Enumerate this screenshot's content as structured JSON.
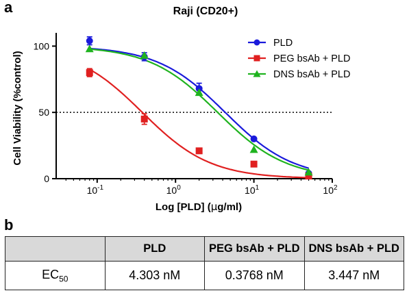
{
  "panel_a_label": "a",
  "panel_b_label": "b",
  "chart_data": {
    "type": "scatter",
    "title": "Raji (CD20+)",
    "xlabel_pre": "Log [PLD] (",
    "xlabel_mu": "μ",
    "xlabel_post": "g/ml)",
    "ylabel": "Cell Viability (%control)",
    "x_scale": "log",
    "xlim": [
      0.03,
      100
    ],
    "ylim": [
      0,
      110
    ],
    "x_ticks": [
      {
        "base": "10",
        "exp": "-1",
        "value": 0.1
      },
      {
        "base": "10",
        "exp": "0",
        "value": 1
      },
      {
        "base": "10",
        "exp": "1",
        "value": 10
      },
      {
        "base": "10",
        "exp": "2",
        "value": 100
      }
    ],
    "y_ticks": [
      0,
      50,
      100
    ],
    "reference_line": {
      "y": 50,
      "style": "dotted"
    },
    "legend_position": "top-right",
    "series": [
      {
        "name": "PLD",
        "marker": "circle",
        "color": "#1a1adb",
        "x": [
          0.08,
          0.4,
          2.0,
          10,
          50
        ],
        "y": [
          104,
          92,
          68,
          30,
          4
        ],
        "err": [
          3,
          3,
          4,
          1,
          1
        ],
        "ec50": 4.303,
        "hill": 1.0
      },
      {
        "name": "PEG bsAb + PLD",
        "marker": "square",
        "color": "#e02020",
        "x": [
          0.08,
          0.4,
          2.0,
          10,
          50
        ],
        "y": [
          80,
          45,
          21,
          11,
          2
        ],
        "err": [
          3,
          4,
          0,
          0,
          0
        ],
        "ec50": 0.3768,
        "hill": 1.0
      },
      {
        "name": "DNS bsAb + PLD",
        "marker": "triangle",
        "color": "#1fb31f",
        "x": [
          0.08,
          0.4,
          2.0,
          10,
          50
        ],
        "y": [
          98,
          93,
          65,
          22,
          5
        ],
        "err": [
          0,
          0,
          0,
          0,
          0
        ],
        "ec50": 3.447,
        "hill": 1.0
      }
    ],
    "fit": {
      "top": 100,
      "bottom": 0
    }
  },
  "table": {
    "headers": [
      "",
      "PLD",
      "PEG bsAb + PLD",
      "DNS bsAb + PLD"
    ],
    "row_label_main": "EC",
    "row_label_sub": "50",
    "values": [
      "4.303 nM",
      "0.3768 nM",
      "3.447 nM"
    ]
  }
}
